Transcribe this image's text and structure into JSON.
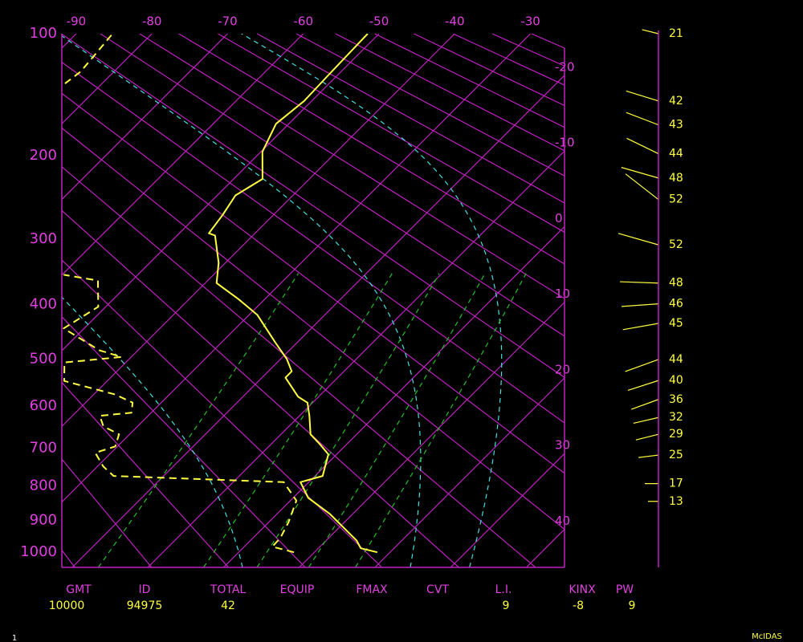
{
  "chart_data": {
    "type": "skewt",
    "ylim": [
      100,
      1050
    ],
    "yticks": [
      100,
      200,
      300,
      400,
      500,
      600,
      700,
      800,
      900,
      1000
    ],
    "xlim": [
      -91.9,
      -25.5
    ],
    "isotherms": [
      -90,
      -80,
      -70,
      -60,
      -50,
      -40,
      -30,
      -20,
      -10,
      0,
      10,
      20,
      30,
      40
    ],
    "dry_adiabats": [
      250,
      260,
      270,
      280,
      290,
      300,
      310,
      320,
      330,
      340,
      350,
      360,
      370,
      380,
      390,
      400,
      410,
      420,
      430,
      440,
      450,
      460,
      470
    ],
    "moist_adiabats": [
      0,
      23,
      31
    ],
    "mixing_ratios": [
      1,
      3,
      5,
      8,
      12
    ],
    "grid_color": "#c020c0",
    "temperature": {
      "color": "#ffff40",
      "pressure": [
        1000,
        987,
        962,
        881,
        834,
        790,
        773,
        716,
        691,
        666,
        622,
        592,
        579,
        538,
        525,
        500,
        468,
        418,
        391,
        365,
        334,
        295,
        292,
        268,
        244,
        225,
        196,
        169,
        149,
        130,
        100
      ],
      "values": [
        18.3,
        15.6,
        14.0,
        7.0,
        2.0,
        -1.1,
        1.0,
        -1.1,
        -3.5,
        -6.1,
        -8.7,
        -10.7,
        -12.7,
        -16.9,
        -16.9,
        -19.2,
        -22.9,
        -28.9,
        -33.5,
        -38.5,
        -40.9,
        -45.0,
        -46.1,
        -46.7,
        -47.6,
        -46.2,
        -49.8,
        -51.7,
        -51.0,
        -51.2,
        -51.5
      ]
    },
    "dewpoint": {
      "color": "#ffff40",
      "pressure": [
        1000,
        982,
        954,
        905,
        842,
        790,
        773,
        748,
        712,
        696,
        666,
        647,
        622,
        615,
        592,
        574,
        545,
        507,
        496,
        483,
        442,
        404,
        361,
        352,
        null,
        135,
        126,
        109,
        100
      ],
      "values": [
        7.3,
        3.7,
        3.6,
        2.6,
        0.8,
        -3.3,
        -26.6,
        -29.2,
        -32.1,
        -30.3,
        -31.4,
        -34.5,
        -36.4,
        -32.6,
        -33.8,
        -37.2,
        -45.7,
        -48.1,
        -41.3,
        -45.1,
        -52.7,
        -51.0,
        -54.5,
        -59.8,
        null,
        -84.9,
        -84.4,
        -84.9,
        -85.2
      ]
    },
    "wind": {
      "color": "#ffff40",
      "pressure": [
        100,
        149,
        170,
        198,
        224,
        249,
        308,
        365,
        399,
        433,
        501,
        544,
        585,
        626,
        666,
        718,
        794,
        844
      ],
      "speed": [
        21,
        42,
        43,
        44,
        48,
        52,
        52,
        48,
        46,
        45,
        44,
        40,
        36,
        32,
        29,
        25,
        17,
        13
      ],
      "direction": [
        284,
        287,
        291,
        296,
        286,
        308,
        286,
        272,
        266,
        260,
        250,
        252,
        250,
        257,
        256,
        263,
        270,
        270
      ]
    },
    "indices": [
      {
        "label": "GMT",
        "value": 10000
      },
      {
        "label": "ID",
        "value": 94975
      },
      {
        "label": "TOTAL",
        "value": 42
      },
      {
        "label": "EQUIP"
      },
      {
        "label": "FMAX"
      },
      {
        "label": "CVT"
      },
      {
        "label": "L.I.",
        "value": 9
      },
      {
        "label": "KINX",
        "value": -8
      },
      {
        "label": "PW",
        "value": 9
      }
    ],
    "frame_number": "1",
    "software": "McIDAS"
  }
}
